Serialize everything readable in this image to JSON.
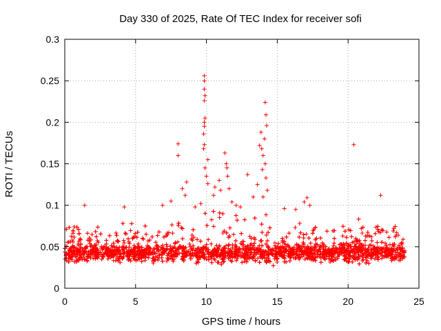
{
  "chart_data": {
    "type": "scatter",
    "title": "Day 330 of 2025, Rate Of TEC Index for receiver sofi",
    "xlabel": "GPS time / hours",
    "ylabel": "ROTI / TECUs",
    "xlim": [
      0,
      25
    ],
    "ylim": [
      0,
      0.3
    ],
    "xticks": [
      0,
      5,
      10,
      15,
      20,
      25
    ],
    "yticks": [
      0,
      0.05,
      0.1,
      0.15,
      0.2,
      0.25,
      0.3
    ],
    "xtick_labels": [
      "0",
      "5",
      "10",
      "15",
      "20",
      "25"
    ],
    "ytick_labels": [
      "0",
      "0.05",
      "0.1",
      "0.15",
      "0.2",
      "0.25",
      "0.3"
    ],
    "grid": true,
    "marker": "+",
    "color": "#ff0000",
    "series": [
      {
        "name": "ROTI",
        "notes": "Dense band of points roughly 0.02-0.07 TECU/s across 0-24 h; enhanced activity near 8 h, 9.5-12 h and 13.5-14.5 h.",
        "points": [
          [
            8.0,
            0.174
          ],
          [
            8.0,
            0.16
          ],
          [
            9.85,
            0.256
          ],
          [
            9.85,
            0.25
          ],
          [
            9.85,
            0.24
          ],
          [
            9.9,
            0.232
          ],
          [
            9.85,
            0.226
          ],
          [
            9.9,
            0.205
          ],
          [
            9.85,
            0.2
          ],
          [
            9.85,
            0.195
          ],
          [
            9.8,
            0.186
          ],
          [
            9.85,
            0.173
          ],
          [
            9.8,
            0.168
          ],
          [
            10.1,
            0.155
          ],
          [
            9.9,
            0.145
          ],
          [
            10.0,
            0.135
          ],
          [
            10.1,
            0.126
          ],
          [
            11.3,
            0.163
          ],
          [
            11.4,
            0.15
          ],
          [
            11.45,
            0.145
          ],
          [
            11.5,
            0.135
          ],
          [
            10.9,
            0.13
          ],
          [
            10.6,
            0.122
          ],
          [
            11.6,
            0.12
          ],
          [
            12.9,
            0.137
          ],
          [
            11.0,
            0.118
          ],
          [
            10.5,
            0.112
          ],
          [
            14.15,
            0.224
          ],
          [
            14.2,
            0.209
          ],
          [
            14.25,
            0.196
          ],
          [
            13.85,
            0.188
          ],
          [
            14.1,
            0.18
          ],
          [
            13.75,
            0.172
          ],
          [
            13.9,
            0.168
          ],
          [
            14.0,
            0.16
          ],
          [
            14.15,
            0.15
          ],
          [
            13.95,
            0.143
          ],
          [
            14.2,
            0.133
          ],
          [
            13.6,
            0.125
          ],
          [
            14.3,
            0.118
          ],
          [
            14.0,
            0.11
          ],
          [
            13.3,
            0.11
          ],
          [
            20.4,
            0.173
          ],
          [
            22.3,
            0.112
          ],
          [
            1.4,
            0.1
          ],
          [
            4.2,
            0.098
          ],
          [
            8.6,
            0.128
          ],
          [
            8.3,
            0.12
          ],
          [
            8.5,
            0.112
          ],
          [
            7.5,
            0.105
          ],
          [
            6.9,
            0.1
          ],
          [
            17.1,
            0.109
          ],
          [
            16.9,
            0.104
          ],
          [
            15.5,
            0.096
          ],
          [
            17.3,
            0.1
          ],
          [
            16.3,
            0.095
          ],
          [
            12.1,
            0.1
          ],
          [
            12.4,
            0.098
          ],
          [
            11.8,
            0.104
          ],
          [
            9.2,
            0.098
          ],
          [
            9.6,
            0.102
          ]
        ]
      }
    ]
  }
}
